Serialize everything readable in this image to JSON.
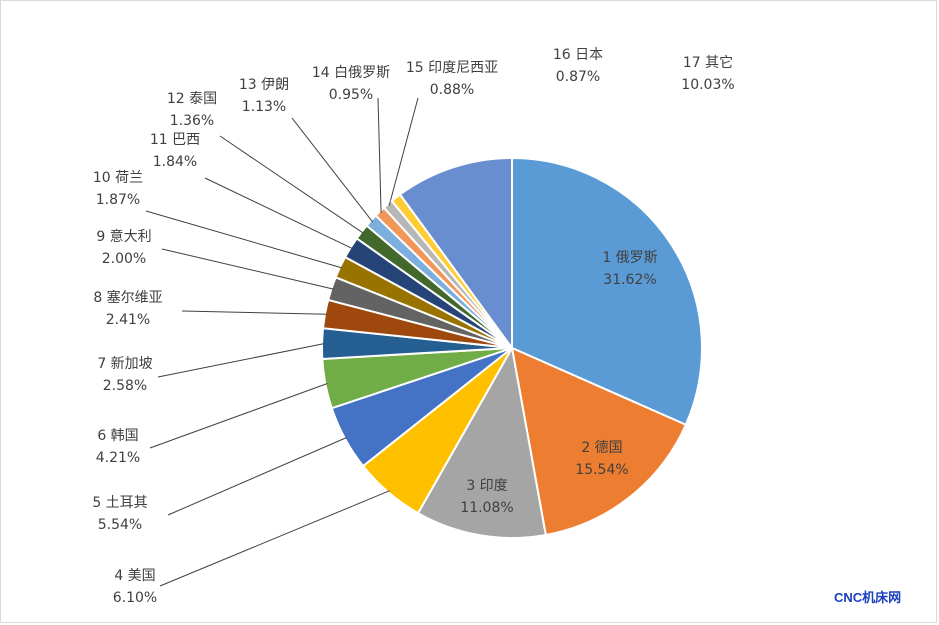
{
  "chart_data": {
    "type": "pie",
    "series": [
      {
        "categories": [
          "1 俄罗斯",
          "2 德国",
          "3 印度",
          "4 美国",
          "5 土耳其",
          "6 韩国",
          "7 新加坡",
          "8 塞尔维亚",
          "9 意大利",
          "10 荷兰",
          "11 巴西",
          "12 泰国",
          "13 伊朗",
          "14 白俄罗斯",
          "15 印度尼西亚",
          "16 日本",
          "17 其它"
        ],
        "values": [
          31.62,
          15.54,
          11.08,
          6.1,
          5.54,
          4.21,
          2.58,
          2.41,
          2.0,
          1.87,
          1.84,
          1.36,
          1.13,
          0.95,
          0.88,
          0.87,
          10.03
        ],
        "labels": [
          "31.62%",
          "15.54%",
          "11.08%",
          "6.10%",
          "5.54%",
          "4.21%",
          "2.58%",
          "2.41%",
          "2.00%",
          "1.87%",
          "1.84%",
          "1.36%",
          "1.13%",
          "0.95%",
          "0.88%",
          "0.87%",
          "10.03%"
        ]
      }
    ],
    "colors": [
      "#5b9bd5",
      "#ed7d31",
      "#a5a5a5",
      "#ffc000",
      "#4472c4",
      "#70ad47",
      "#255e91",
      "#9e480e",
      "#636363",
      "#997300",
      "#264478",
      "#43682b",
      "#7cafdd",
      "#f1975a",
      "#b7b7b7",
      "#ffcd33",
      "#698ed0"
    ],
    "start_angle_deg": 0,
    "direction": "clockwise",
    "label_placement": "inside for slices 1–3, outside with leader lines for the rest"
  },
  "watermark": "CNC机床网"
}
